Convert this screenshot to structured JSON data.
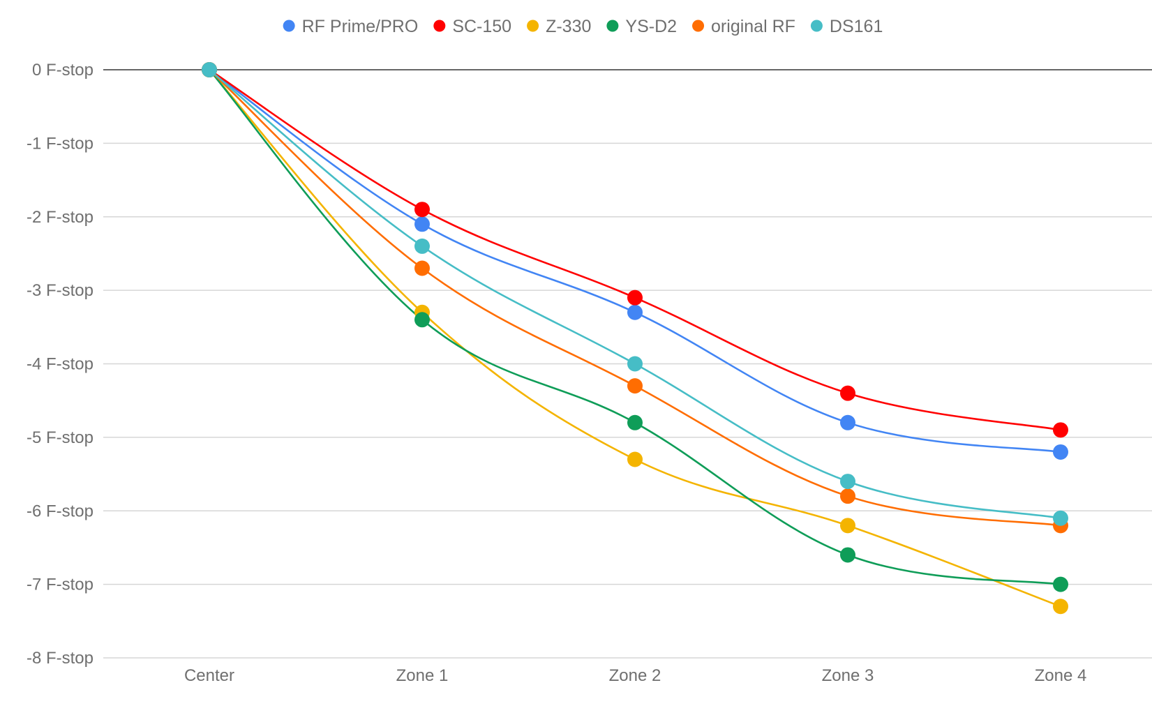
{
  "chart_data": {
    "type": "line",
    "title": "",
    "xlabel": "",
    "ylabel": "",
    "categories": [
      "Center",
      "Zone 1",
      "Zone 2",
      "Zone 3",
      "Zone 4"
    ],
    "ylim": [
      -8,
      0
    ],
    "yticks": [
      0,
      -1,
      -2,
      -3,
      -4,
      -5,
      -6,
      -7,
      -8
    ],
    "ytick_labels": [
      "0 F-stop",
      "-1 F-stop",
      "-2 F-stop",
      "-3 F-stop",
      "-4 F-stop",
      "-5 F-stop",
      "-6 F-stop",
      "-7 F-stop",
      "-8 F-stop"
    ],
    "grid": true,
    "smooth": true,
    "legend_position": "top",
    "series": [
      {
        "name": "RF Prime/PRO",
        "color": "#4285f4",
        "values": [
          0,
          -2.1,
          -3.3,
          -4.8,
          -5.2
        ]
      },
      {
        "name": "SC-150",
        "color": "#ff0000",
        "values": [
          0,
          -1.9,
          -3.1,
          -4.4,
          -4.9
        ]
      },
      {
        "name": "Z-330",
        "color": "#f4b400",
        "values": [
          0,
          -3.3,
          -5.3,
          -6.2,
          -7.3
        ]
      },
      {
        "name": "YS-D2",
        "color": "#0f9d58",
        "values": [
          0,
          -3.4,
          -4.8,
          -6.6,
          -7.0
        ]
      },
      {
        "name": "original RF",
        "color": "#ff6d01",
        "values": [
          0,
          -2.7,
          -4.3,
          -5.8,
          -6.2
        ]
      },
      {
        "name": "DS161",
        "color": "#46bdc6",
        "values": [
          0,
          -2.4,
          -4.0,
          -5.6,
          -6.1
        ]
      }
    ]
  }
}
